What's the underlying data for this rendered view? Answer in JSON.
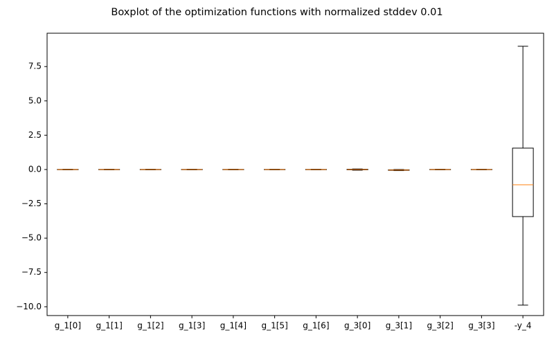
{
  "chart_data": {
    "type": "boxplot",
    "title": "Boxplot of the optimization functions with normalized stddev 0.01",
    "categories": [
      "g_1[0]",
      "g_1[1]",
      "g_1[2]",
      "g_1[3]",
      "g_1[4]",
      "g_1[5]",
      "g_1[6]",
      "g_3[0]",
      "g_3[1]",
      "g_3[2]",
      "g_3[3]",
      "-y_4"
    ],
    "boxes": [
      {
        "low": -0.02,
        "q1": -0.01,
        "median": 0,
        "q3": 0.01,
        "high": 0.02
      },
      {
        "low": -0.02,
        "q1": -0.01,
        "median": 0,
        "q3": 0.01,
        "high": 0.02
      },
      {
        "low": -0.02,
        "q1": -0.01,
        "median": 0,
        "q3": 0.01,
        "high": 0.02
      },
      {
        "low": -0.02,
        "q1": -0.01,
        "median": 0,
        "q3": 0.01,
        "high": 0.02
      },
      {
        "low": -0.02,
        "q1": -0.01,
        "median": 0,
        "q3": 0.01,
        "high": 0.02
      },
      {
        "low": -0.02,
        "q1": -0.01,
        "median": 0,
        "q3": 0.01,
        "high": 0.02
      },
      {
        "low": -0.02,
        "q1": -0.01,
        "median": 0,
        "q3": 0.01,
        "high": 0.02
      },
      {
        "low": -0.05,
        "q1": -0.02,
        "median": 0,
        "q3": 0.02,
        "high": 0.04
      },
      {
        "low": -0.08,
        "q1": -0.06,
        "median": -0.04,
        "q3": -0.02,
        "high": 0
      },
      {
        "low": -0.02,
        "q1": -0.01,
        "median": 0,
        "q3": 0.01,
        "high": 0.02
      },
      {
        "low": -0.02,
        "q1": -0.01,
        "median": 0,
        "q3": 0.01,
        "high": 0.02
      },
      {
        "low": -9.88,
        "q1": -3.43,
        "median": -1.11,
        "q3": 1.56,
        "high": 8.98
      }
    ],
    "box_color": "#000000",
    "median_color": "#ff7f0e",
    "ylim": [
      -10.64,
      9.93
    ],
    "yticks": [
      {
        "value": -10,
        "label": "−10.0"
      },
      {
        "value": -7.5,
        "label": "−7.5"
      },
      {
        "value": -5,
        "label": "−5.0"
      },
      {
        "value": -2.5,
        "label": "−2.5"
      },
      {
        "value": 0,
        "label": "0.0"
      },
      {
        "value": 2.5,
        "label": "2.5"
      },
      {
        "value": 5,
        "label": "5.0"
      },
      {
        "value": 7.5,
        "label": "7.5"
      }
    ]
  }
}
